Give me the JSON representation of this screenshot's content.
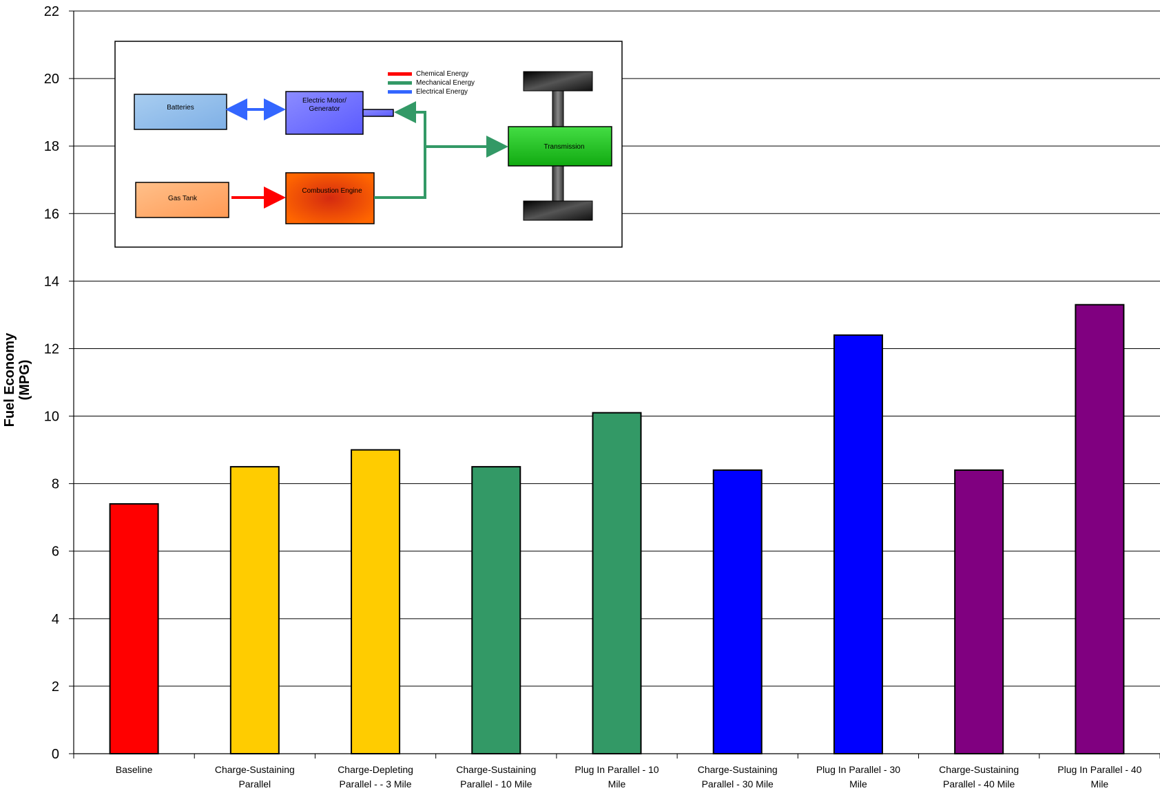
{
  "chart_data": {
    "type": "bar",
    "ylabel_line1": "Fuel Economy",
    "ylabel_line2": "(MPG)",
    "ylim": [
      0,
      22
    ],
    "yticks": [
      "0",
      "2",
      "4",
      "6",
      "8",
      "10",
      "12",
      "14",
      "16",
      "18",
      "20",
      "22"
    ],
    "grid": true,
    "categories": [
      [
        "Baseline"
      ],
      [
        "Charge-Sustaining",
        "Parallel"
      ],
      [
        "Charge-Depleting",
        "Parallel -  - 3 Mile"
      ],
      [
        "Charge-Sustaining",
        "Parallel - 10 Mile"
      ],
      [
        "Plug In Parallel - 10",
        "Mile"
      ],
      [
        "Charge-Sustaining",
        "Parallel - 30 Mile"
      ],
      [
        "Plug In Parallel - 30",
        "Mile"
      ],
      [
        "Charge-Sustaining",
        "Parallel - 40 Mile"
      ],
      [
        "Plug In Parallel - 40",
        "Mile"
      ]
    ],
    "values": [
      7.4,
      8.5,
      9.0,
      8.5,
      10.1,
      8.4,
      12.4,
      8.4,
      13.3
    ],
    "colors": [
      "#ff0000",
      "#ffcc00",
      "#ffcc00",
      "#339966",
      "#339966",
      "#0000ff",
      "#0000ff",
      "#800080",
      "#800080"
    ]
  },
  "diagram": {
    "batteries": "Batteries",
    "motor_line1": "Electric Motor/",
    "motor_line2": "Generator",
    "gas_tank": "Gas Tank",
    "engine": "Combustion Engine",
    "transmission": "Transmission",
    "legend": [
      {
        "label": "Chemical Energy",
        "color": "#ff0000"
      },
      {
        "label": "Mechanical Energy",
        "color": "#339966"
      },
      {
        "label": "Electrical Energy",
        "color": "#3366ff"
      }
    ]
  }
}
